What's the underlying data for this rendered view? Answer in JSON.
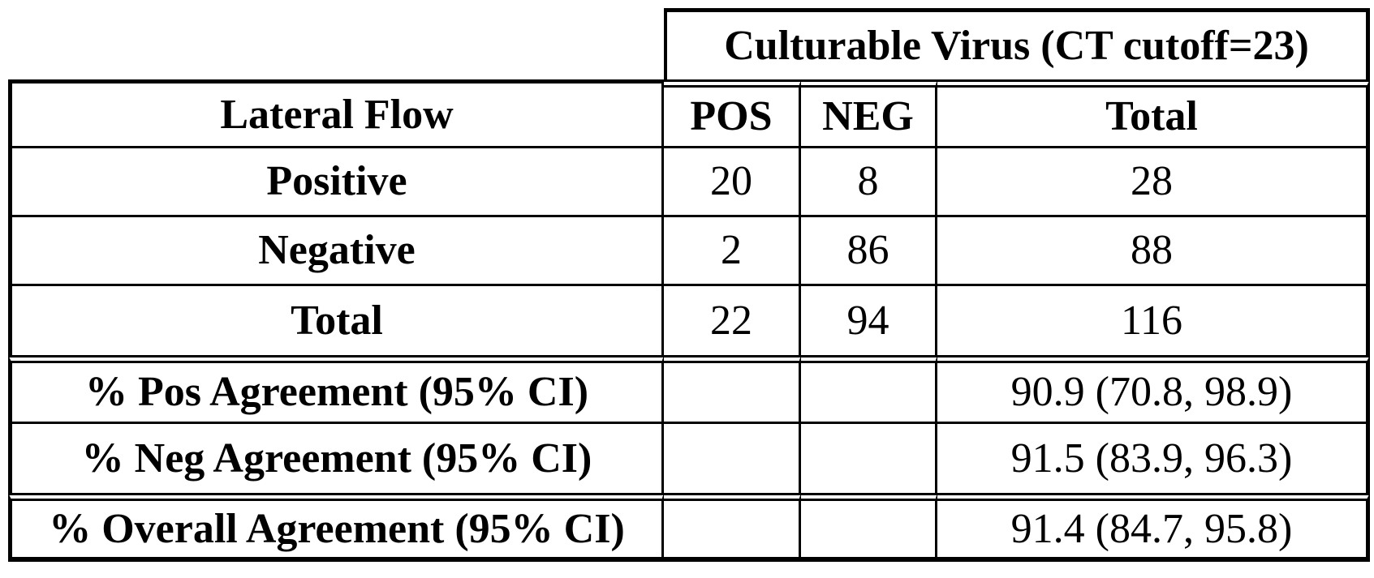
{
  "figure": {
    "background": "#ffffff",
    "border_color": "#000000",
    "text_color": "#000000"
  },
  "table": {
    "spanner_header": "Culturable Virus (CT cutoff=23)",
    "columns": {
      "row_label": "Lateral Flow",
      "pos": "POS",
      "neg": "NEG",
      "total": "Total"
    },
    "rows": [
      {
        "label": "Positive",
        "pos": "20",
        "neg": "8",
        "total": "28"
      },
      {
        "label": "Negative",
        "pos": "2",
        "neg": "86",
        "total": "88"
      },
      {
        "label": "Total",
        "pos": "22",
        "neg": "94",
        "total": "116"
      }
    ],
    "summary_rows": [
      {
        "label": "% Pos Agreement (95% CI)",
        "pos": "",
        "neg": "",
        "total": "90.9 (70.8, 98.9)"
      },
      {
        "label": "% Neg Agreement (95% CI)",
        "pos": "",
        "neg": "",
        "total": "91.5 (83.9, 96.3)"
      },
      {
        "label": "% Overall Agreement (95% CI)",
        "pos": "",
        "neg": "",
        "total": "91.4 (84.7, 95.8)"
      }
    ]
  }
}
